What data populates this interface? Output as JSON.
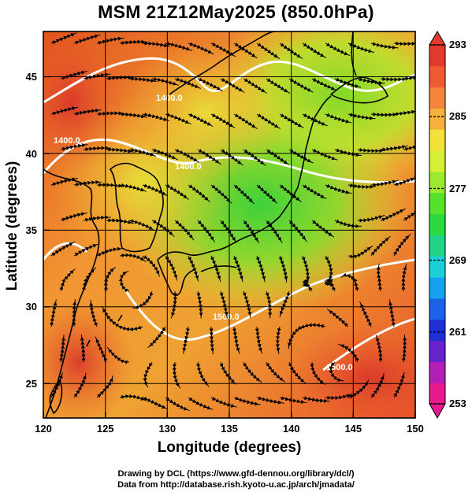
{
  "title": "MSM 21Z12May2025 (850.0hPa)",
  "xlabel": "Longitude (degrees)",
  "ylabel": "Latitude  (degrees)",
  "credit_line1": "Drawing by DCL (https://www.gfd-dennou.org/library/dcl/)",
  "credit_line2": "Data from http://database.rish.kyoto-u.ac.jp/arch/jmadata/",
  "map": {
    "lon_range": [
      120,
      150
    ],
    "lat_range": [
      22.4,
      47.6
    ],
    "x_ticks": [
      120,
      125,
      130,
      135,
      140,
      145,
      150
    ],
    "x_tick_labels": [
      "120",
      "125",
      "130",
      "135",
      "140",
      "145",
      "150"
    ],
    "y_ticks": [
      25,
      30,
      35,
      40,
      45
    ],
    "y_tick_labels": [
      "25",
      "30",
      "35",
      "40",
      "45"
    ],
    "grid": true,
    "field": "temperature (shaded) with geopotential height contours (white) and wind streamlines (black)"
  },
  "colorbar": {
    "min": 253,
    "max": 293,
    "tick_labels": [
      "293",
      "285",
      "277",
      "269",
      "261",
      "253"
    ],
    "colors": [
      "#e6198f",
      "#b21fb8",
      "#6622cc",
      "#1f2fd6",
      "#1b62e8",
      "#17a0f0",
      "#1ad0d6",
      "#20d486",
      "#2cd93f",
      "#55e22a",
      "#9be930",
      "#d6ef35",
      "#f4e13a",
      "#f8b13a",
      "#f5843a",
      "#ee5a32",
      "#e23a2c"
    ]
  },
  "contours": [
    {
      "label": "1400.0"
    },
    {
      "label": "1400.0"
    },
    {
      "label": "1400.0"
    },
    {
      "label": "1500.0"
    },
    {
      "label": "1500.0"
    }
  ]
}
